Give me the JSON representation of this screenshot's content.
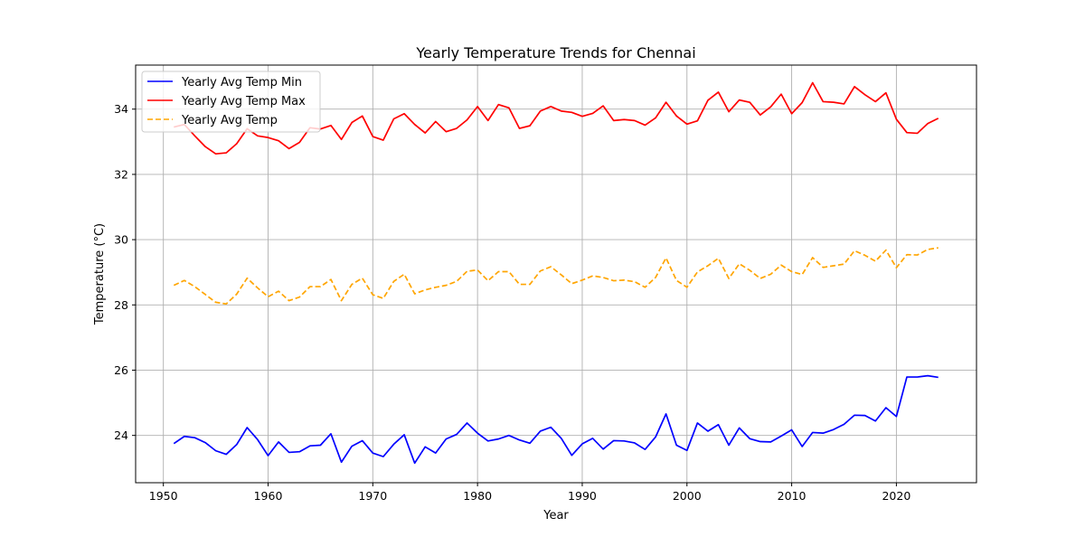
{
  "chart_data": {
    "type": "line",
    "title": "Yearly Temperature Trends for Chennai",
    "xlabel": "Year",
    "ylabel": "Temperature (°C)",
    "xlim": [
      1947.35,
      2027.65
    ],
    "ylim": [
      22.55,
      35.35
    ],
    "xticks": [
      1950,
      1960,
      1970,
      1980,
      1990,
      2000,
      2010,
      2020
    ],
    "yticks": [
      24,
      26,
      28,
      30,
      32,
      34
    ],
    "grid": true,
    "legend_position": "upper-left",
    "x": [
      1951,
      1952,
      1953,
      1954,
      1955,
      1956,
      1957,
      1958,
      1959,
      1960,
      1961,
      1962,
      1963,
      1964,
      1965,
      1966,
      1967,
      1968,
      1969,
      1970,
      1971,
      1972,
      1973,
      1974,
      1975,
      1976,
      1977,
      1978,
      1979,
      1980,
      1981,
      1982,
      1983,
      1984,
      1985,
      1986,
      1987,
      1988,
      1989,
      1990,
      1991,
      1992,
      1993,
      1994,
      1995,
      1996,
      1997,
      1998,
      1999,
      2000,
      2001,
      2002,
      2003,
      2004,
      2005,
      2006,
      2007,
      2008,
      2009,
      2010,
      2011,
      2012,
      2013,
      2014,
      2015,
      2016,
      2017,
      2018,
      2019,
      2020,
      2021,
      2022,
      2023,
      2024
    ],
    "series": [
      {
        "name": "Yearly Avg Temp Min",
        "color": "#0000ff",
        "style": "solid",
        "values": [
          23.75,
          23.97,
          23.93,
          23.78,
          23.53,
          23.42,
          23.72,
          24.24,
          23.87,
          23.38,
          23.8,
          23.48,
          23.5,
          23.68,
          23.7,
          24.05,
          23.18,
          23.67,
          23.84,
          23.46,
          23.35,
          23.73,
          24.02,
          23.15,
          23.65,
          23.46,
          23.89,
          24.03,
          24.38,
          24.07,
          23.83,
          23.89,
          24.0,
          23.86,
          23.76,
          24.13,
          24.25,
          23.91,
          23.39,
          23.74,
          23.91,
          23.58,
          23.84,
          23.83,
          23.77,
          23.57,
          23.95,
          24.66,
          23.7,
          23.54,
          24.38,
          24.13,
          24.33,
          23.7,
          24.23,
          23.9,
          23.81,
          23.8,
          23.98,
          24.17,
          23.66,
          24.09,
          24.07,
          24.18,
          24.34,
          24.62,
          24.61,
          24.44,
          24.85,
          24.58,
          25.79,
          25.79,
          25.83,
          25.78
        ]
      },
      {
        "name": "Yearly Avg Temp Max",
        "color": "#ff0000",
        "style": "solid",
        "values": [
          33.45,
          33.53,
          33.18,
          32.85,
          32.63,
          32.66,
          32.94,
          33.4,
          33.18,
          33.13,
          33.03,
          32.79,
          32.98,
          33.43,
          33.39,
          33.5,
          33.07,
          33.59,
          33.79,
          33.16,
          33.05,
          33.7,
          33.86,
          33.53,
          33.27,
          33.62,
          33.31,
          33.41,
          33.67,
          34.08,
          33.65,
          34.14,
          34.04,
          33.41,
          33.49,
          33.94,
          34.08,
          33.94,
          33.9,
          33.78,
          33.87,
          34.1,
          33.65,
          33.68,
          33.65,
          33.51,
          33.73,
          34.21,
          33.79,
          33.54,
          33.64,
          34.27,
          34.52,
          33.92,
          34.28,
          34.21,
          33.82,
          34.07,
          34.46,
          33.86,
          34.2,
          34.81,
          34.23,
          34.21,
          34.16,
          34.69,
          34.44,
          34.23,
          34.5,
          33.69,
          33.28,
          33.26,
          33.56,
          33.72
        ]
      },
      {
        "name": "Yearly Avg Temp",
        "color": "#ffa500",
        "style": "dashed",
        "values": [
          28.6,
          28.75,
          28.56,
          28.32,
          28.08,
          28.03,
          28.33,
          28.82,
          28.52,
          28.25,
          28.42,
          28.13,
          28.24,
          28.56,
          28.56,
          28.78,
          28.13,
          28.63,
          28.82,
          28.31,
          28.2,
          28.72,
          28.94,
          28.34,
          28.46,
          28.54,
          28.6,
          28.72,
          29.03,
          29.07,
          28.74,
          29.02,
          29.02,
          28.63,
          28.63,
          29.04,
          29.17,
          28.92,
          28.65,
          28.76,
          28.89,
          28.84,
          28.74,
          28.76,
          28.71,
          28.54,
          28.84,
          29.44,
          28.75,
          28.54,
          29.01,
          29.2,
          29.43,
          28.81,
          29.26,
          29.06,
          28.81,
          28.94,
          29.22,
          29.02,
          28.93,
          29.45,
          29.15,
          29.2,
          29.25,
          29.66,
          29.52,
          29.34,
          29.68,
          29.14,
          29.54,
          29.53,
          29.7,
          29.75
        ]
      }
    ]
  }
}
